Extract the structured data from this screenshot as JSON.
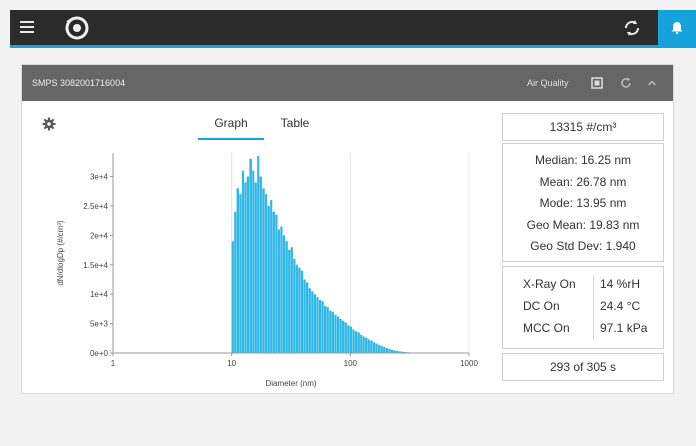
{
  "header": {
    "menu_icon": "hamburger-menu-icon",
    "logo_icon": "tsi-logo-icon",
    "sync_icon": "sync-icon",
    "alert_icon": "bell-alert-icon",
    "accent_color": "#16a3dc"
  },
  "card": {
    "title": "SMPS 3082001716004",
    "air_quality_label": "Air Quality",
    "window_icon": "window-icon",
    "refresh_icon": "refresh-icon",
    "collapse_icon": "chevron-up-icon"
  },
  "tabs": [
    {
      "label": "Graph",
      "active": true
    },
    {
      "label": "Table",
      "active": false
    }
  ],
  "settings_icon": "gear-icon",
  "chart_data": {
    "type": "bar",
    "xlabel": "Diameter (nm)",
    "ylabel": "dN/dlogDp (#/cm³)",
    "x_scale": "log",
    "xlim": [
      1,
      1000
    ],
    "ylim": [
      0,
      34000
    ],
    "x_ticks": [
      "1",
      "10",
      "100",
      "1000"
    ],
    "y_ticks": [
      "0e+0",
      "5e+3",
      "1e+4",
      "1.5e+4",
      "2e+4",
      "2.5e+4",
      "3e+4"
    ],
    "y_tick_values": [
      0,
      5000,
      10000,
      15000,
      20000,
      25000,
      30000
    ],
    "grid": true,
    "bar_color": "#2fb7e6",
    "series": [
      {
        "x": [
          10.0,
          10.5,
          11.0,
          11.6,
          12.2,
          12.8,
          13.4,
          14.1,
          14.9,
          15.6,
          16.4,
          17.2,
          18.1,
          19.1,
          20.0,
          21.1,
          22.1,
          23.3,
          24.5,
          25.7,
          27.0,
          28.4,
          29.9,
          31.4,
          33.0,
          34.7,
          36.4,
          38.3,
          40.3,
          42.3,
          44.5,
          46.8,
          49.2,
          51.7,
          54.3,
          57.1,
          60.0,
          63.1,
          66.3,
          69.7,
          73.3,
          77.0,
          81.0,
          85.1,
          89.5,
          94.1,
          98.9,
          104,
          109,
          115,
          121,
          127,
          133,
          140,
          147,
          155,
          163,
          171,
          180,
          189,
          199,
          209,
          220,
          231,
          243,
          255,
          268,
          282,
          297,
          312,
          328,
          345,
          362,
          381,
          400,
          421,
          443,
          465
        ],
        "values": [
          19000,
          24000,
          28000,
          27000,
          31000,
          29000,
          30000,
          33000,
          31000,
          29000,
          33500,
          30000,
          28000,
          27000,
          25000,
          26000,
          24000,
          23500,
          21000,
          21500,
          20000,
          19000,
          17500,
          18000,
          16000,
          15000,
          14500,
          14000,
          12500,
          12000,
          11000,
          10500,
          10000,
          9500,
          9000,
          8800,
          8000,
          7800,
          7200,
          7000,
          6500,
          6200,
          5800,
          5500,
          5200,
          4700,
          4500,
          4000,
          3700,
          3500,
          3100,
          2800,
          2600,
          2300,
          2100,
          1800,
          1600,
          1400,
          1200,
          1000,
          850,
          700,
          550,
          450,
          350,
          280,
          220,
          170,
          130,
          100,
          80,
          60,
          45,
          30,
          20,
          15,
          10,
          5
        ]
      }
    ]
  },
  "concentration": "13315 #/cm³",
  "stats": [
    "Median:  16.25 nm",
    "Mean:  26.78 nm",
    "Mode:  13.95 nm",
    "Geo Mean:  19.83 nm",
    "Geo Std Dev:  1.940"
  ],
  "env": [
    {
      "label": "X-Ray On",
      "value": "14 %rH"
    },
    {
      "label": "DC On",
      "value": "24.4 °C"
    },
    {
      "label": "MCC On",
      "value": "97.1 kPa"
    }
  ],
  "timer": "293 of 305 s"
}
